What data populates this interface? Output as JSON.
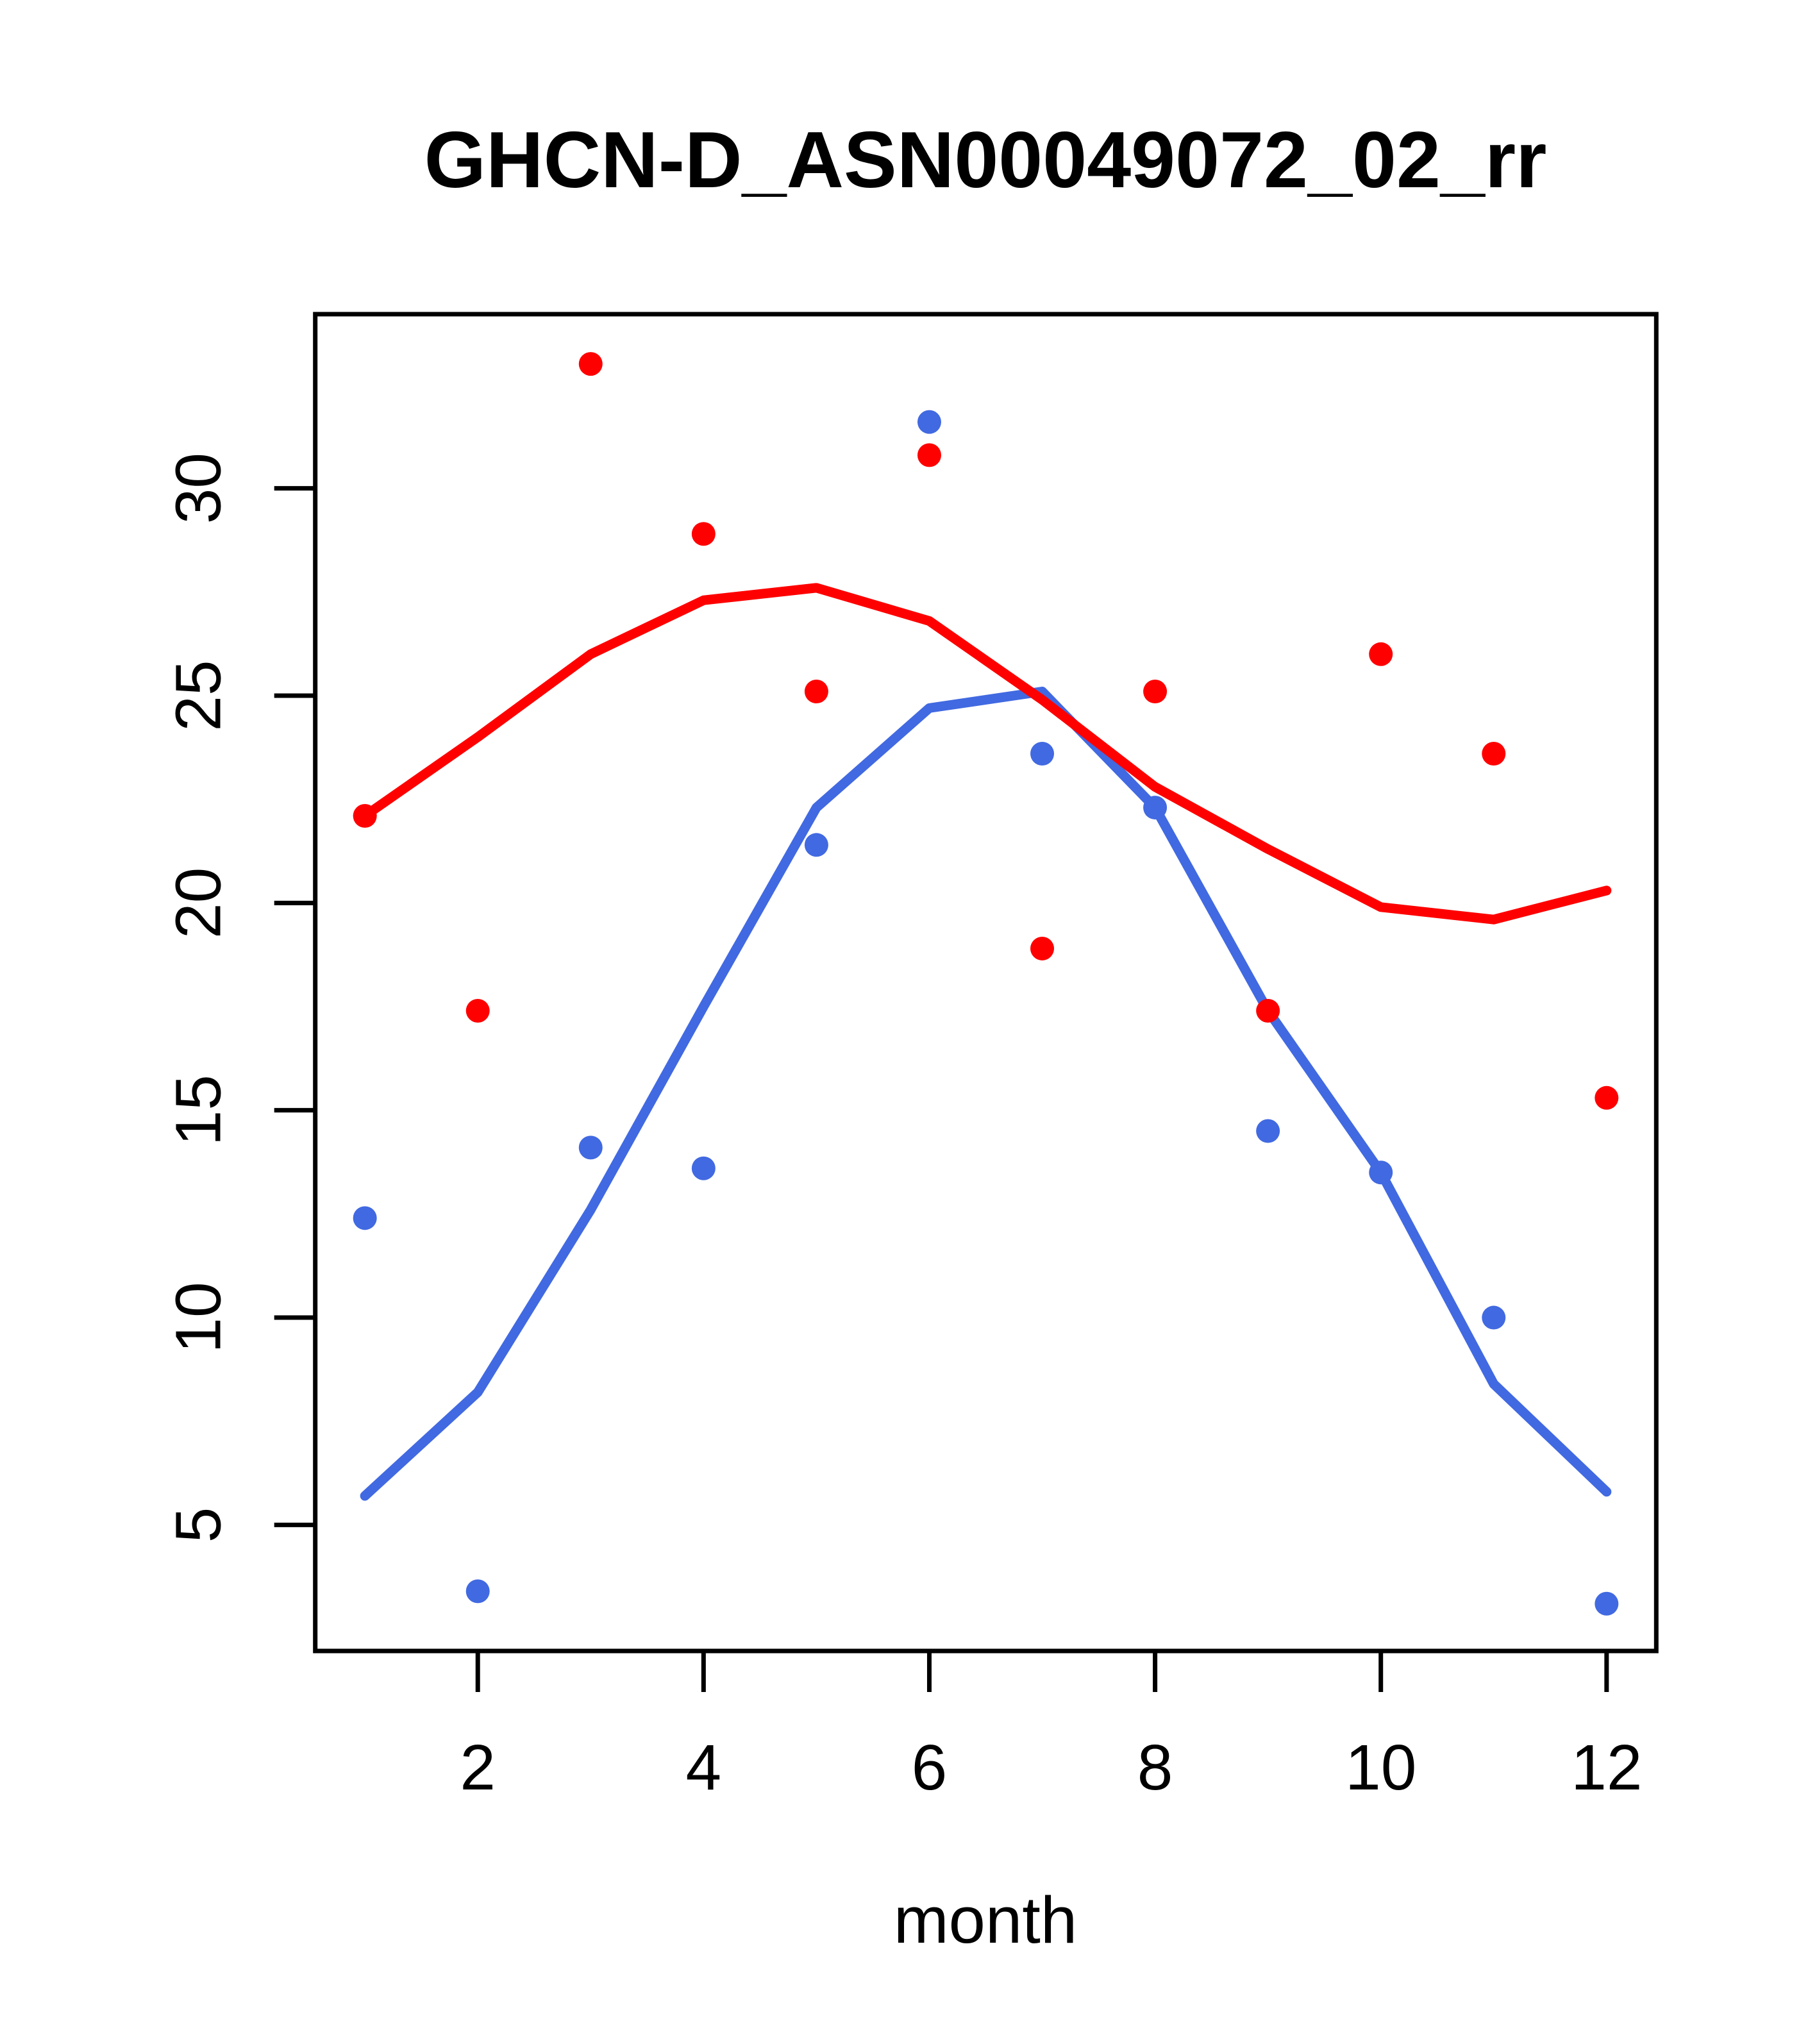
{
  "page": {
    "background_color": "#ffffff",
    "axis_color": "#000000"
  },
  "chart_data": {
    "type": "scatter",
    "title": "GHCN-D_ASN00049072_02_rr",
    "xlabel": "month",
    "ylabel": "",
    "x": [
      1,
      2,
      3,
      4,
      5,
      6,
      7,
      8,
      9,
      10,
      11,
      12
    ],
    "xlim": [
      0.56,
      12.44
    ],
    "ylim": [
      1.96,
      34.2
    ],
    "xticks": [
      2,
      4,
      6,
      8,
      10,
      12
    ],
    "yticks": [
      5,
      10,
      15,
      20,
      25,
      30
    ],
    "grid": false,
    "legend": "none",
    "series": [
      {
        "name": "red-monthly-points",
        "type": "scatter",
        "color": "#FF0000",
        "values": [
          22.1,
          17.4,
          33.0,
          28.9,
          25.1,
          30.8,
          18.9,
          25.1,
          17.4,
          26.0,
          23.6,
          15.3
        ]
      },
      {
        "name": "blue-monthly-points",
        "type": "scatter",
        "color": "#4169E1",
        "values": [
          12.4,
          3.4,
          14.1,
          13.6,
          21.4,
          31.6,
          23.6,
          22.3,
          14.5,
          13.5,
          10.0,
          3.1
        ]
      },
      {
        "name": "blue-smooth-line",
        "type": "line",
        "color": "#4169E1",
        "values": [
          5.7,
          8.2,
          12.6,
          17.5,
          22.3,
          24.7,
          25.1,
          22.3,
          17.4,
          13.5,
          8.4,
          5.8
        ]
      },
      {
        "name": "red-smooth-line",
        "type": "line",
        "color": "#FF0000",
        "values": [
          22.1,
          24.0,
          26.0,
          27.3,
          27.6,
          26.8,
          24.9,
          22.8,
          21.3,
          19.9,
          19.6,
          20.3
        ]
      }
    ]
  }
}
